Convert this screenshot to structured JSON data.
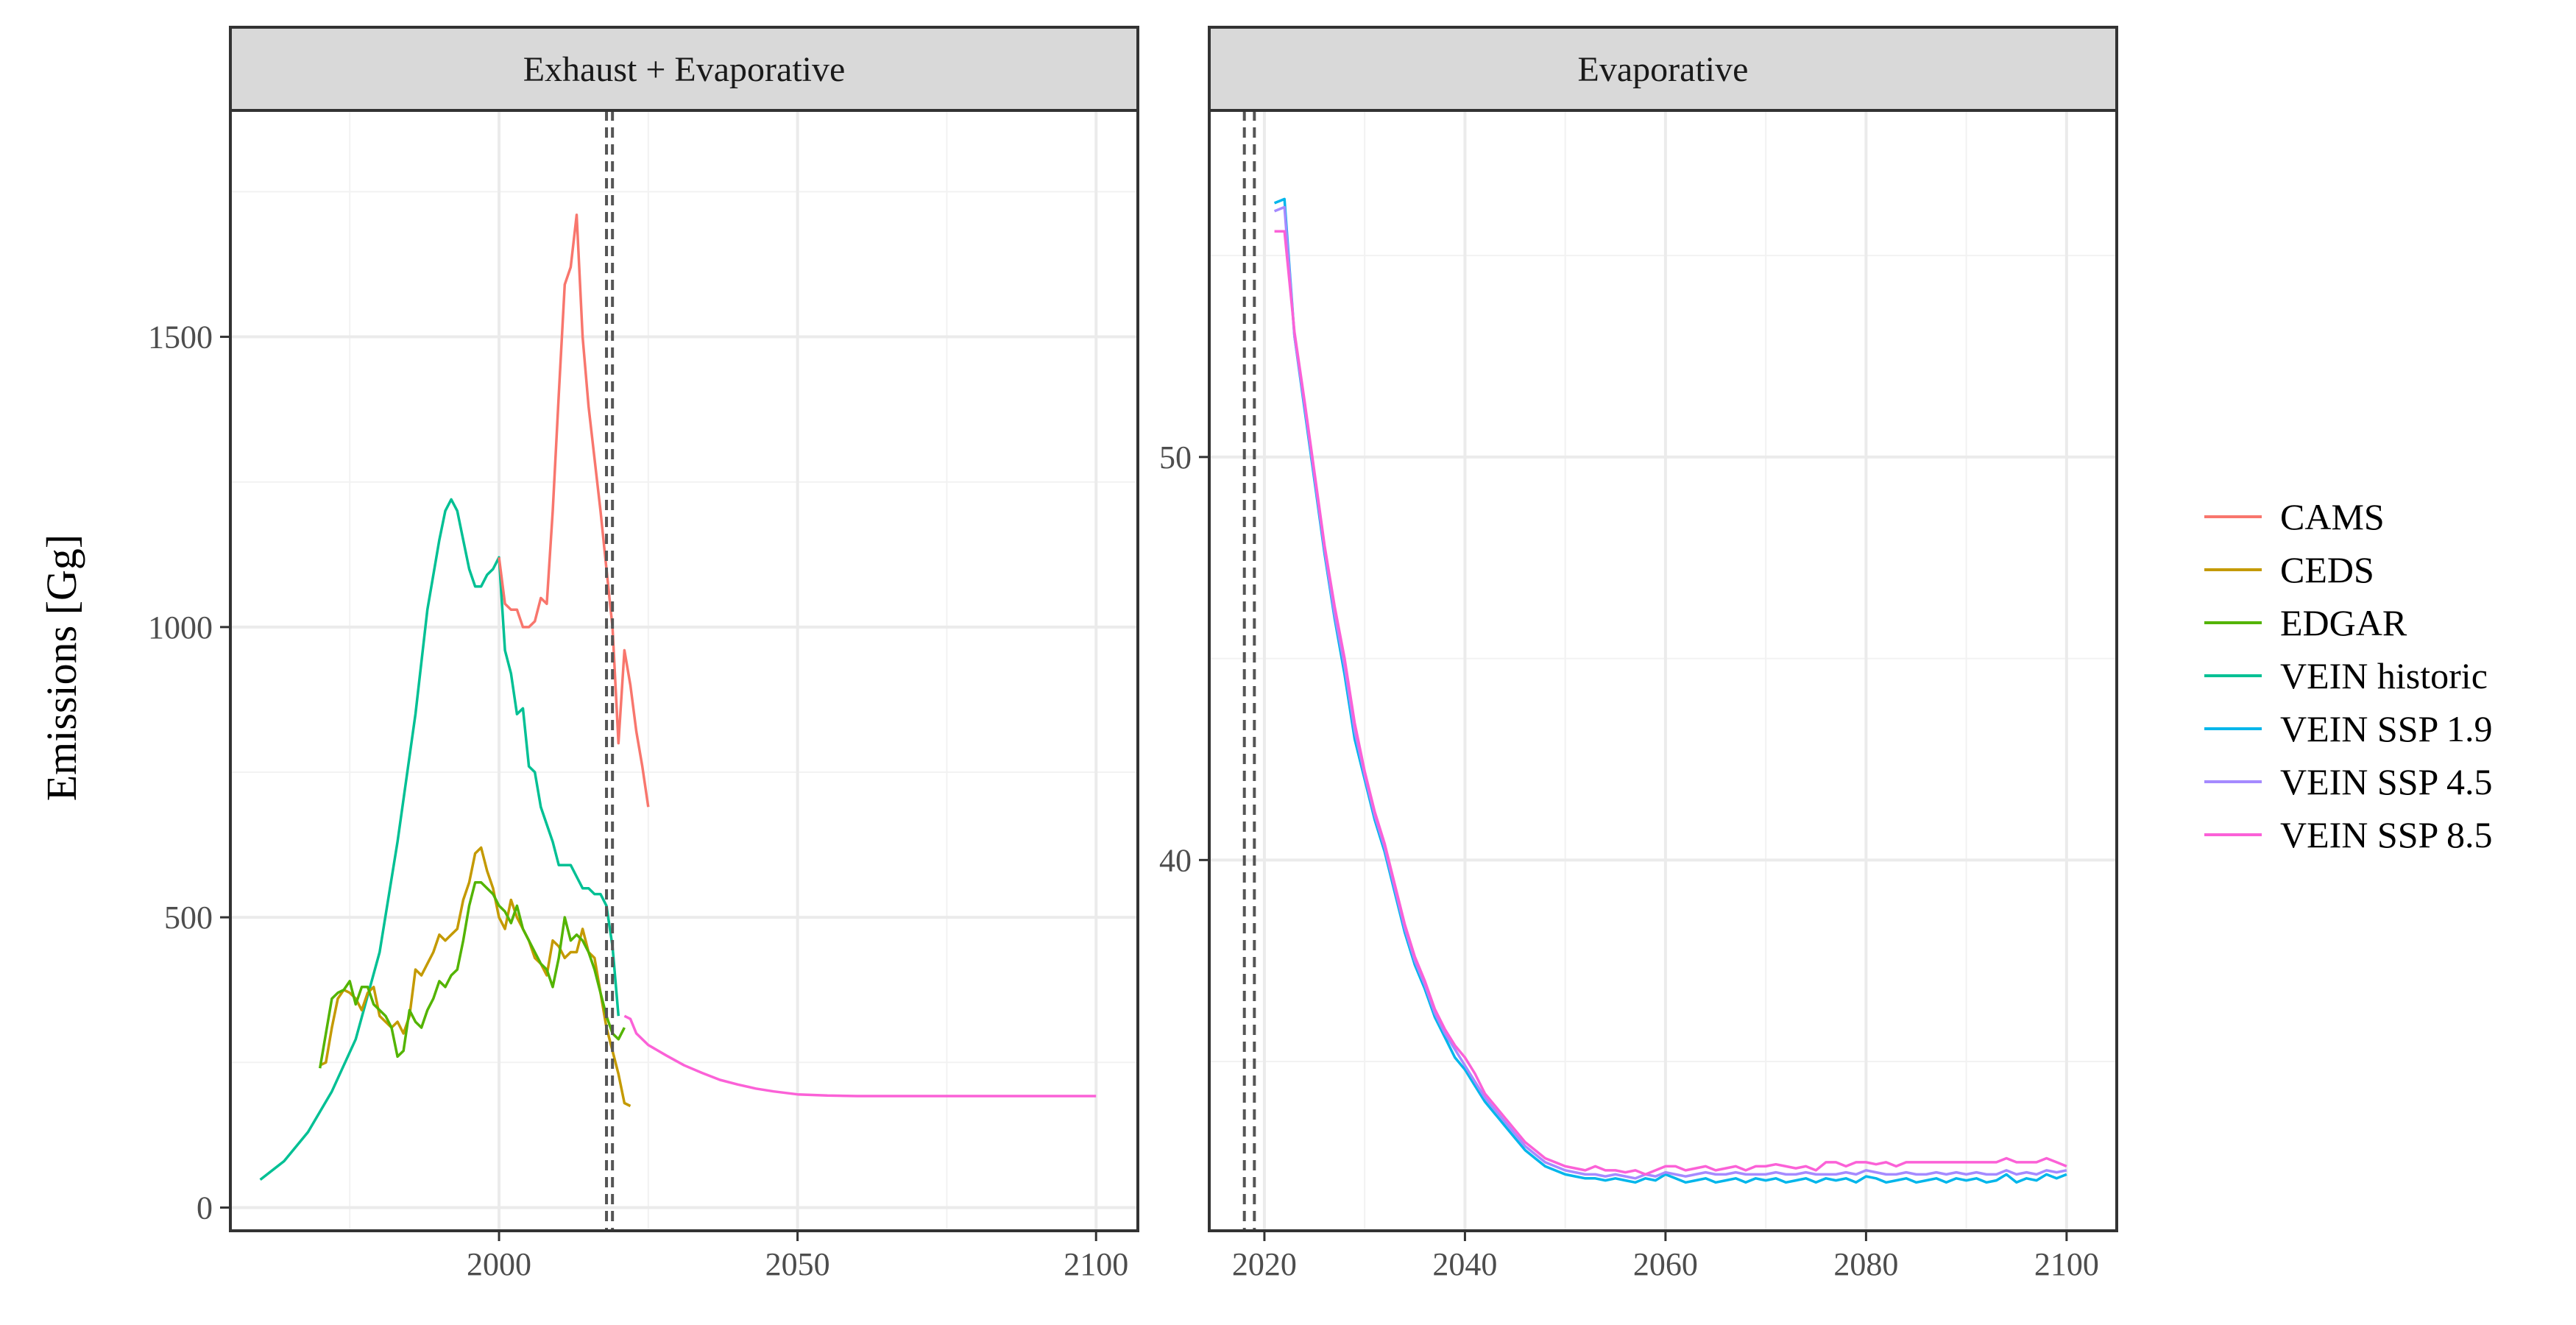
{
  "chart_data": {
    "type": "line",
    "ylabel": "Emissions [Gg]",
    "legend": {
      "placement": "right",
      "entries": [
        {
          "name": "CAMS",
          "color": "#F8766D"
        },
        {
          "name": "CEDS",
          "color": "#C49A00"
        },
        {
          "name": "EDGAR",
          "color": "#53B400"
        },
        {
          "name": "VEIN historic",
          "color": "#00C094"
        },
        {
          "name": "VEIN SSP 1.9",
          "color": "#00B6EB"
        },
        {
          "name": "VEIN SSP 4.5",
          "color": "#A58AFF"
        },
        {
          "name": "VEIN SSP 8.5",
          "color": "#FB61D7"
        }
      ]
    },
    "panels": [
      {
        "strip": "Exhaust + Evaporative",
        "xlim": [
          1955,
          2107
        ],
        "ylim": [
          -40,
          1890
        ],
        "x_ticks": [
          2000,
          2050,
          2100
        ],
        "y_ticks": [
          0,
          500,
          1000,
          1500
        ],
        "vlines": [
          2018,
          2019
        ],
        "grid": true,
        "series": [
          {
            "name": "VEIN historic",
            "color": "#00C094",
            "x": [
              1960,
              1964,
              1968,
              1972,
              1976,
              1980,
              1983,
              1986,
              1988,
              1990,
              1991,
              1992,
              1993,
              1994,
              1995,
              1996,
              1997,
              1998,
              1999,
              2000,
              2001,
              2002,
              2003,
              2004,
              2005,
              2006,
              2007,
              2008,
              2009,
              2010,
              2011,
              2012,
              2013,
              2014,
              2015,
              2016,
              2017,
              2018,
              2019,
              2020
            ],
            "y": [
              48,
              80,
              130,
              200,
              290,
              440,
              630,
              850,
              1030,
              1150,
              1200,
              1220,
              1200,
              1150,
              1100,
              1070,
              1070,
              1090,
              1100,
              1120,
              960,
              920,
              850,
              860,
              760,
              750,
              690,
              660,
              630,
              590,
              590,
              590,
              570,
              550,
              550,
              540,
              540,
              520,
              450,
              330
            ]
          },
          {
            "name": "CAMS",
            "color": "#F8766D",
            "x": [
              2000,
              2001,
              2002,
              2003,
              2004,
              2005,
              2006,
              2007,
              2008,
              2009,
              2010,
              2011,
              2012,
              2013,
              2014,
              2015,
              2016,
              2017,
              2018,
              2019,
              2020,
              2021,
              2022,
              2023,
              2024,
              2025
            ],
            "y": [
              1120,
              1040,
              1030,
              1030,
              1000,
              1000,
              1010,
              1050,
              1040,
              1200,
              1400,
              1590,
              1620,
              1710,
              1500,
              1380,
              1290,
              1200,
              1100,
              1000,
              800,
              960,
              900,
              820,
              760,
              690
            ]
          },
          {
            "name": "CEDS",
            "color": "#C49A00",
            "x": [
              1970,
              1971,
              1972,
              1973,
              1974,
              1975,
              1976,
              1977,
              1978,
              1979,
              1980,
              1981,
              1982,
              1983,
              1984,
              1985,
              1986,
              1987,
              1988,
              1989,
              1990,
              1991,
              1992,
              1993,
              1994,
              1995,
              1996,
              1997,
              1998,
              1999,
              2000,
              2001,
              2002,
              2003,
              2004,
              2005,
              2006,
              2007,
              2008,
              2009,
              2010,
              2011,
              2012,
              2013,
              2014,
              2015,
              2016,
              2017,
              2018,
              2019,
              2020,
              2021,
              2022
            ],
            "y": [
              245,
              250,
              310,
              360,
              375,
              370,
              360,
              340,
              370,
              380,
              330,
              320,
              310,
              320,
              300,
              330,
              410,
              400,
              420,
              440,
              470,
              460,
              470,
              480,
              530,
              560,
              610,
              620,
              580,
              550,
              500,
              480,
              530,
              500,
              480,
              460,
              430,
              420,
              400,
              460,
              450,
              430,
              440,
              440,
              480,
              440,
              430,
              370,
              310,
              270,
              230,
              180,
              175
            ]
          },
          {
            "name": "EDGAR",
            "color": "#53B400",
            "x": [
              1970,
              1971,
              1972,
              1973,
              1974,
              1975,
              1976,
              1977,
              1978,
              1979,
              1980,
              1981,
              1982,
              1983,
              1984,
              1985,
              1986,
              1987,
              1988,
              1989,
              1990,
              1991,
              1992,
              1993,
              1994,
              1995,
              1996,
              1997,
              1998,
              1999,
              2000,
              2001,
              2002,
              2003,
              2004,
              2005,
              2006,
              2007,
              2008,
              2009,
              2010,
              2011,
              2012,
              2013,
              2014,
              2015,
              2016,
              2017,
              2018,
              2019,
              2020,
              2021
            ],
            "y": [
              240,
              300,
              360,
              370,
              375,
              390,
              350,
              380,
              380,
              350,
              340,
              330,
              310,
              260,
              270,
              340,
              320,
              310,
              340,
              360,
              390,
              380,
              400,
              410,
              460,
              520,
              560,
              560,
              550,
              540,
              520,
              510,
              490,
              520,
              480,
              460,
              440,
              420,
              410,
              380,
              430,
              500,
              460,
              470,
              460,
              440,
              410,
              370,
              330,
              300,
              290,
              310
            ]
          },
          {
            "name": "VEIN SSP 8.5",
            "color": "#FB61D7",
            "x": [
              2021,
              2022,
              2023,
              2025,
              2028,
              2031,
              2034,
              2037,
              2040,
              2043,
              2046,
              2050,
              2055,
              2060,
              2070,
              2080,
              2090,
              2100
            ],
            "y": [
              330,
              325,
              300,
              280,
              262,
              245,
              232,
              220,
              212,
              205,
              200,
              195,
              193,
              192,
              192,
              192,
              192,
              192
            ]
          }
        ]
      },
      {
        "strip": "Evaporative",
        "xlim": [
          2014.5,
          2105
        ],
        "ylim": [
          30.8,
          58.6
        ],
        "x_ticks": [
          2020,
          2040,
          2060,
          2080,
          2100
        ],
        "y_ticks": [
          40,
          50
        ],
        "vlines": [
          2018,
          2019
        ],
        "grid": true,
        "series": [
          {
            "name": "VEIN SSP 1.9",
            "color": "#00B6EB",
            "x": [
              2021,
              2022,
              2023,
              2024,
              2025,
              2026,
              2027,
              2028,
              2029,
              2030,
              2031,
              2032,
              2033,
              2034,
              2035,
              2036,
              2037,
              2038,
              2039,
              2040,
              2041,
              2042,
              2043,
              2044,
              2045,
              2046,
              2047,
              2048,
              2049,
              2050,
              2051,
              2052,
              2053,
              2054,
              2055,
              2056,
              2057,
              2058,
              2059,
              2060,
              2061,
              2062,
              2063,
              2064,
              2065,
              2066,
              2067,
              2068,
              2069,
              2070,
              2071,
              2072,
              2073,
              2074,
              2075,
              2076,
              2077,
              2078,
              2079,
              2080,
              2081,
              2082,
              2083,
              2084,
              2085,
              2086,
              2087,
              2088,
              2089,
              2090,
              2091,
              2092,
              2093,
              2094,
              2095,
              2096,
              2097,
              2098,
              2099,
              2100
            ],
            "y": [
              56.3,
              56.4,
              53.0,
              51.2,
              49.4,
              47.6,
              46.0,
              44.6,
              43.0,
              42.0,
              41.0,
              40.2,
              39.2,
              38.2,
              37.4,
              36.8,
              36.1,
              35.6,
              35.1,
              34.8,
              34.4,
              34.0,
              33.7,
              33.4,
              33.1,
              32.8,
              32.6,
              32.4,
              32.3,
              32.2,
              32.15,
              32.1,
              32.1,
              32.05,
              32.1,
              32.05,
              32.0,
              32.1,
              32.05,
              32.2,
              32.1,
              32.0,
              32.05,
              32.1,
              32.0,
              32.05,
              32.1,
              32.0,
              32.1,
              32.05,
              32.1,
              32.0,
              32.05,
              32.1,
              32.0,
              32.1,
              32.05,
              32.1,
              32.0,
              32.15,
              32.1,
              32.0,
              32.05,
              32.1,
              32.0,
              32.05,
              32.1,
              32.0,
              32.1,
              32.05,
              32.1,
              32.0,
              32.05,
              32.2,
              32.0,
              32.1,
              32.05,
              32.2,
              32.1,
              32.2
            ]
          },
          {
            "name": "VEIN SSP 4.5",
            "color": "#A58AFF",
            "x": [
              2021,
              2022,
              2023,
              2024,
              2025,
              2026,
              2027,
              2028,
              2029,
              2030,
              2031,
              2032,
              2033,
              2034,
              2035,
              2036,
              2037,
              2038,
              2039,
              2040,
              2041,
              2042,
              2043,
              2044,
              2045,
              2046,
              2047,
              2048,
              2049,
              2050,
              2051,
              2052,
              2053,
              2054,
              2055,
              2056,
              2057,
              2058,
              2059,
              2060,
              2061,
              2062,
              2063,
              2064,
              2065,
              2066,
              2067,
              2068,
              2069,
              2070,
              2071,
              2072,
              2073,
              2074,
              2075,
              2076,
              2077,
              2078,
              2079,
              2080,
              2081,
              2082,
              2083,
              2084,
              2085,
              2086,
              2087,
              2088,
              2089,
              2090,
              2091,
              2092,
              2093,
              2094,
              2095,
              2096,
              2097,
              2098,
              2099,
              2100
            ],
            "y": [
              56.1,
              56.2,
              53.0,
              51.3,
              49.5,
              47.7,
              46.1,
              44.8,
              43.2,
              42.1,
              41.1,
              40.3,
              39.3,
              38.3,
              37.5,
              36.9,
              36.2,
              35.7,
              35.3,
              34.9,
              34.5,
              34.1,
              33.8,
              33.5,
              33.2,
              32.9,
              32.7,
              32.5,
              32.4,
              32.3,
              32.25,
              32.2,
              32.2,
              32.15,
              32.2,
              32.15,
              32.1,
              32.2,
              32.15,
              32.25,
              32.2,
              32.15,
              32.2,
              32.25,
              32.2,
              32.2,
              32.25,
              32.2,
              32.2,
              32.2,
              32.25,
              32.2,
              32.2,
              32.25,
              32.2,
              32.2,
              32.2,
              32.25,
              32.2,
              32.3,
              32.25,
              32.2,
              32.2,
              32.25,
              32.2,
              32.2,
              32.25,
              32.2,
              32.25,
              32.2,
              32.25,
              32.2,
              32.2,
              32.3,
              32.2,
              32.25,
              32.2,
              32.3,
              32.25,
              32.3
            ]
          },
          {
            "name": "VEIN SSP 8.5",
            "color": "#FB61D7",
            "x": [
              2021,
              2022,
              2023,
              2024,
              2025,
              2026,
              2027,
              2028,
              2029,
              2030,
              2031,
              2032,
              2033,
              2034,
              2035,
              2036,
              2037,
              2038,
              2039,
              2040,
              2041,
              2042,
              2043,
              2044,
              2045,
              2046,
              2047,
              2048,
              2049,
              2050,
              2051,
              2052,
              2053,
              2054,
              2055,
              2056,
              2057,
              2058,
              2059,
              2060,
              2061,
              2062,
              2063,
              2064,
              2065,
              2066,
              2067,
              2068,
              2069,
              2070,
              2071,
              2072,
              2073,
              2074,
              2075,
              2076,
              2077,
              2078,
              2079,
              2080,
              2081,
              2082,
              2083,
              2084,
              2085,
              2086,
              2087,
              2088,
              2089,
              2090,
              2091,
              2092,
              2093,
              2094,
              2095,
              2096,
              2097,
              2098,
              2099,
              2100
            ],
            "y": [
              55.6,
              55.6,
              53.1,
              51.4,
              49.6,
              47.8,
              46.3,
              45.0,
              43.4,
              42.2,
              41.2,
              40.4,
              39.4,
              38.4,
              37.6,
              37.0,
              36.3,
              35.8,
              35.4,
              35.1,
              34.7,
              34.2,
              33.9,
              33.6,
              33.3,
              33.0,
              32.8,
              32.6,
              32.5,
              32.4,
              32.35,
              32.3,
              32.4,
              32.3,
              32.3,
              32.25,
              32.3,
              32.2,
              32.3,
              32.4,
              32.4,
              32.3,
              32.35,
              32.4,
              32.3,
              32.35,
              32.4,
              32.3,
              32.4,
              32.4,
              32.45,
              32.4,
              32.35,
              32.4,
              32.3,
              32.5,
              32.5,
              32.4,
              32.5,
              32.5,
              32.45,
              32.5,
              32.4,
              32.5,
              32.5,
              32.5,
              32.5,
              32.5,
              32.5,
              32.5,
              32.5,
              32.5,
              32.5,
              32.6,
              32.5,
              32.5,
              32.5,
              32.6,
              32.5,
              32.4
            ]
          }
        ]
      }
    ]
  }
}
